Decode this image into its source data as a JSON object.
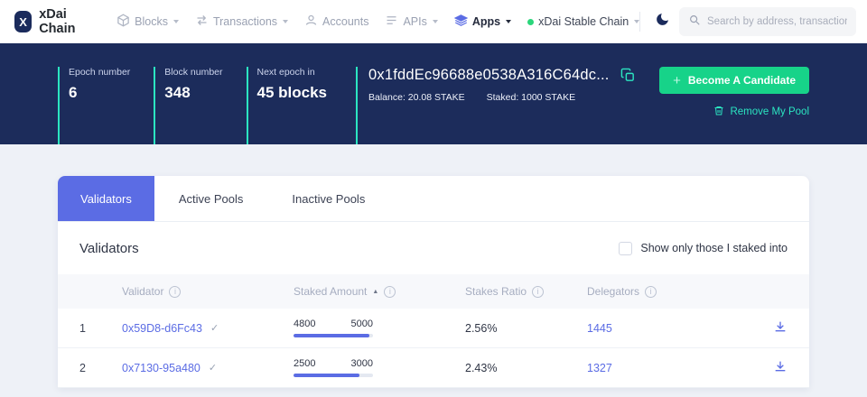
{
  "navbar": {
    "brand": "xDai Chain",
    "items": [
      {
        "label": "Blocks",
        "icon": "blocks-cube-icon",
        "has_dropdown": true
      },
      {
        "label": "Transactions",
        "icon": "transactions-icon",
        "has_dropdown": true
      },
      {
        "label": "Accounts",
        "icon": "account-icon",
        "has_dropdown": false
      },
      {
        "label": "APIs",
        "icon": "apis-icon",
        "has_dropdown": true
      },
      {
        "label": "Apps",
        "icon": "apps-stack-icon",
        "has_dropdown": true,
        "active": true
      }
    ],
    "network": {
      "label": "xDai Stable Chain"
    },
    "search": {
      "placeholder": "Search by address, transaction, block"
    }
  },
  "hero": {
    "stats": [
      {
        "label": "Epoch number",
        "value": "6"
      },
      {
        "label": "Block number",
        "value": "348"
      },
      {
        "label": "Next epoch in",
        "value": "45 blocks"
      }
    ],
    "account": {
      "address": "0x1fddEc96688e0538A316C64dc...",
      "balance": "Balance: 20.08 STAKE",
      "staked": "Staked: 1000 STAKE"
    },
    "actions": {
      "become_candidate": "Become A Candidate",
      "remove_pool": "Remove My Pool"
    }
  },
  "main": {
    "tabs": [
      {
        "label": "Validators",
        "active": true
      },
      {
        "label": "Active Pools",
        "active": false
      },
      {
        "label": "Inactive Pools",
        "active": false
      }
    ],
    "section_title": "Validators",
    "filter_label": "Show only those I staked into",
    "table": {
      "columns": [
        "Validator",
        "Staked Amount",
        "Stakes Ratio",
        "Delegators"
      ],
      "rows": [
        {
          "index": "1",
          "validator": "0x59D8-d6Fc43",
          "staked_min": "4800",
          "staked_max": "5000",
          "progress": 96,
          "stakes_ratio": "2.56%",
          "delegators": "1445"
        },
        {
          "index": "2",
          "validator": "0x7130-95a480",
          "staked_min": "2500",
          "staked_max": "3000",
          "progress": 83,
          "stakes_ratio": "2.43%",
          "delegators": "1327"
        }
      ]
    }
  },
  "colors": {
    "accent_teal": "#2be5c1",
    "accent_green": "#17d389",
    "accent_blue": "#5b6ce4",
    "hero_navy": "#1c2c5b"
  }
}
